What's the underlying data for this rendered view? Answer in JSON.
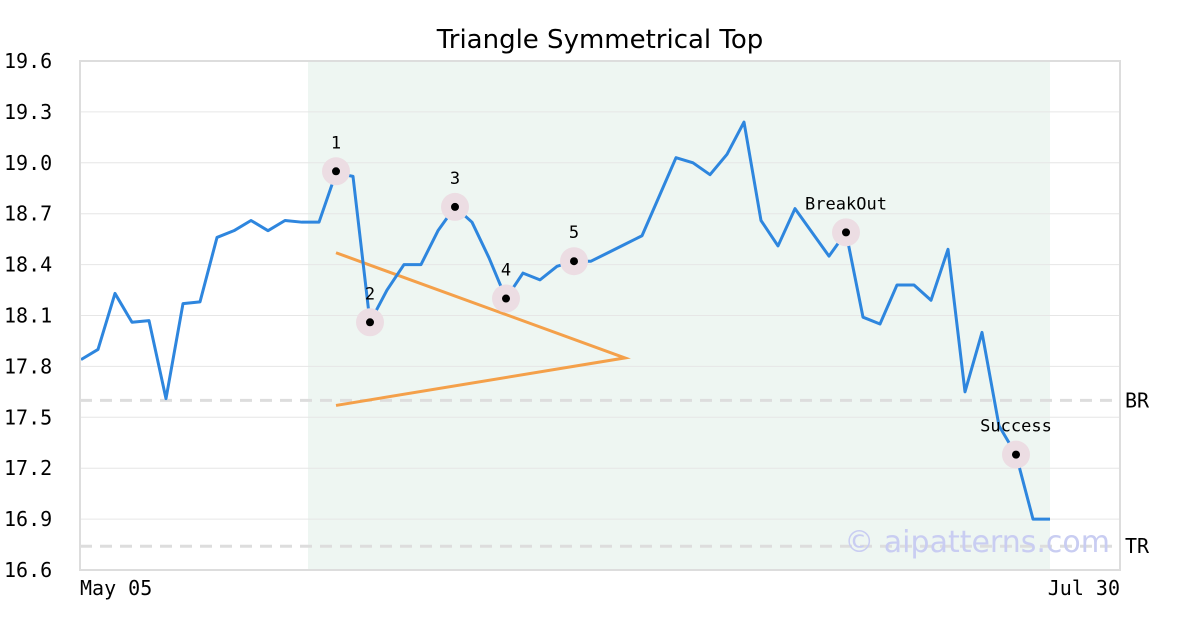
{
  "chart_data": {
    "type": "line",
    "title": "Triangle Symmetrical Top",
    "xlabel": "",
    "ylabel": "",
    "ylim": [
      16.6,
      19.6
    ],
    "yticks": [
      "19.6",
      "19.3",
      "19.0",
      "18.7",
      "18.4",
      "18.1",
      "17.8",
      "17.5",
      "17.2",
      "16.9",
      "16.6"
    ],
    "xtick_labels": [
      "May 05",
      "Jul 30"
    ],
    "grid": true,
    "colors": {
      "line": "#2e86de",
      "triangle": "#f4a04a",
      "shade": "#eef6f2",
      "level": "#dddddd",
      "marker_halo": "#ecdde3"
    },
    "series": [
      {
        "values": [
          17.84,
          17.9,
          18.23,
          18.06,
          18.07,
          17.61,
          18.17,
          18.18,
          18.56,
          18.6,
          18.66,
          18.6,
          18.66,
          18.65,
          18.65,
          18.94,
          18.92,
          18.06,
          18.25,
          18.4,
          18.4,
          18.6,
          18.74,
          18.65,
          18.44,
          18.2,
          18.35,
          18.31,
          18.39,
          18.42,
          18.42,
          18.47,
          18.52,
          18.57,
          18.8,
          19.03,
          19.0,
          18.93,
          19.05,
          19.24,
          18.66,
          18.51,
          18.73,
          18.59,
          18.45,
          18.59,
          18.09,
          18.05,
          18.28,
          18.28,
          18.19,
          18.49,
          17.65,
          18.0,
          17.45,
          17.28,
          16.9,
          16.9
        ]
      }
    ],
    "shade_range": [
      13,
      57
    ],
    "levels": [
      {
        "label": "BR",
        "value": 17.6
      },
      {
        "label": "TR",
        "value": 16.74
      }
    ],
    "triangle": [
      {
        "x": 15,
        "y": 18.47
      },
      {
        "x": 32,
        "y": 17.85
      },
      {
        "x": 15,
        "y": 17.57
      }
    ],
    "points": [
      {
        "label": "1",
        "x": 15,
        "y": 18.95,
        "pos": "above"
      },
      {
        "label": "2",
        "x": 17,
        "y": 18.06,
        "pos": "above"
      },
      {
        "label": "3",
        "x": 22,
        "y": 18.74,
        "pos": "above"
      },
      {
        "label": "4",
        "x": 25,
        "y": 18.2,
        "pos": "above"
      },
      {
        "label": "5",
        "x": 29,
        "y": 18.42,
        "pos": "above"
      },
      {
        "label": "BreakOut",
        "x": 45,
        "y": 18.59,
        "pos": "above"
      },
      {
        "label": "Success",
        "x": 55,
        "y": 17.28,
        "pos": "above"
      }
    ],
    "watermark": "© aipatterns.com"
  }
}
